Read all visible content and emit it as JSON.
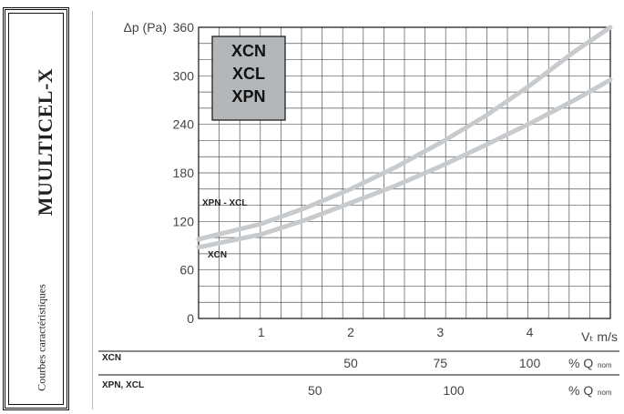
{
  "sidebar": {
    "brand": "MUULTICEL-X",
    "subtitle": "Courbes caractéristiques"
  },
  "chart_data": {
    "type": "line",
    "ylabel": "Δp (Pa)",
    "xlabel": "Vₜ m/s",
    "xlim": [
      0.3,
      4.9
    ],
    "ylim": [
      0,
      360
    ],
    "yticks": [
      0,
      60,
      120,
      180,
      240,
      300,
      360
    ],
    "xticks": [
      1,
      2,
      3,
      4
    ],
    "grid": true,
    "legend_box": [
      "XCN",
      "XCL",
      "XPN"
    ],
    "series": [
      {
        "name": "XPN - XCL",
        "x": [
          0.3,
          1,
          1.5,
          2,
          2.5,
          3,
          3.5,
          4,
          4.5,
          4.9
        ],
        "y": [
          98,
          117,
          137,
          160,
          187,
          217,
          250,
          288,
          330,
          360
        ]
      },
      {
        "name": "XCN",
        "x": [
          0.3,
          1,
          1.5,
          2,
          2.5,
          3,
          3.5,
          4,
          4.5,
          4.9
        ],
        "y": [
          88,
          104,
          122,
          143,
          164,
          188,
          214,
          241,
          270,
          295
        ]
      }
    ],
    "secondary_axes": [
      {
        "label": "XCN",
        "unit": "% Q",
        "unit_sub": "nom",
        "ticks": [
          {
            "value": 50,
            "x": 2
          },
          {
            "value": 75,
            "x": 3
          },
          {
            "value": 100,
            "x": 4
          }
        ]
      },
      {
        "label": "XPN, XCL",
        "unit": "% Q",
        "unit_sub": "nom",
        "ticks": [
          {
            "value": 50,
            "x": 1.6
          },
          {
            "value": 100,
            "x": 3.15
          }
        ]
      }
    ]
  },
  "colors": {
    "curve": "#c8cbce",
    "legend_bg": "#b4b7ba",
    "grid": "#555555",
    "frame": "#111111"
  }
}
